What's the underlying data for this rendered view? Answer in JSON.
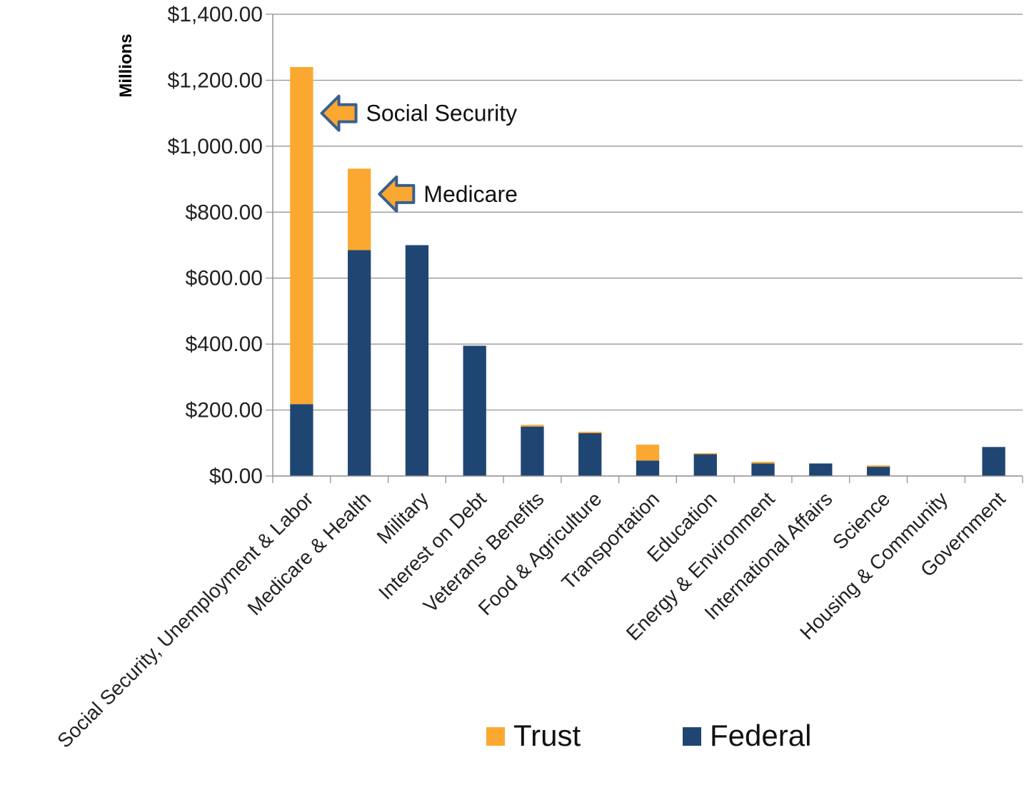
{
  "chart_data": {
    "type": "bar",
    "stacked": true,
    "ylabel": "Millions",
    "ylim": [
      0,
      1400
    ],
    "yticks": [
      "$0.00",
      "$200.00",
      "$400.00",
      "$600.00",
      "$800.00",
      "$1,000.00",
      "$1,200.00",
      "$1,400.00"
    ],
    "grid": true,
    "legend_position": "bottom",
    "categories": [
      "Social Security, Unemployment & Labor",
      "Medicare & Health",
      "Military",
      "Interest on Debt",
      "Veterans' Benefits",
      "Food & Agriculture",
      "Transportation",
      "Education",
      "Energy & Environment",
      "International Affairs",
      "Science",
      "Housing & Community",
      "Government"
    ],
    "series": [
      {
        "name": "Federal",
        "color": "#1F4673",
        "values": [
          218,
          685,
          700,
          395,
          150,
          130,
          47,
          66,
          38,
          38,
          28,
          0,
          88
        ]
      },
      {
        "name": "Trust",
        "color": "#FBA831",
        "values": [
          1022,
          247,
          0,
          0,
          5,
          4,
          48,
          3,
          5,
          0,
          4,
          0,
          0
        ]
      }
    ],
    "annotations": [
      {
        "text": "Social Security",
        "category": "Social Security, Unemployment & Labor",
        "y": 1100
      },
      {
        "text": "Medicare",
        "category": "Medicare & Health",
        "y": 855
      }
    ]
  }
}
